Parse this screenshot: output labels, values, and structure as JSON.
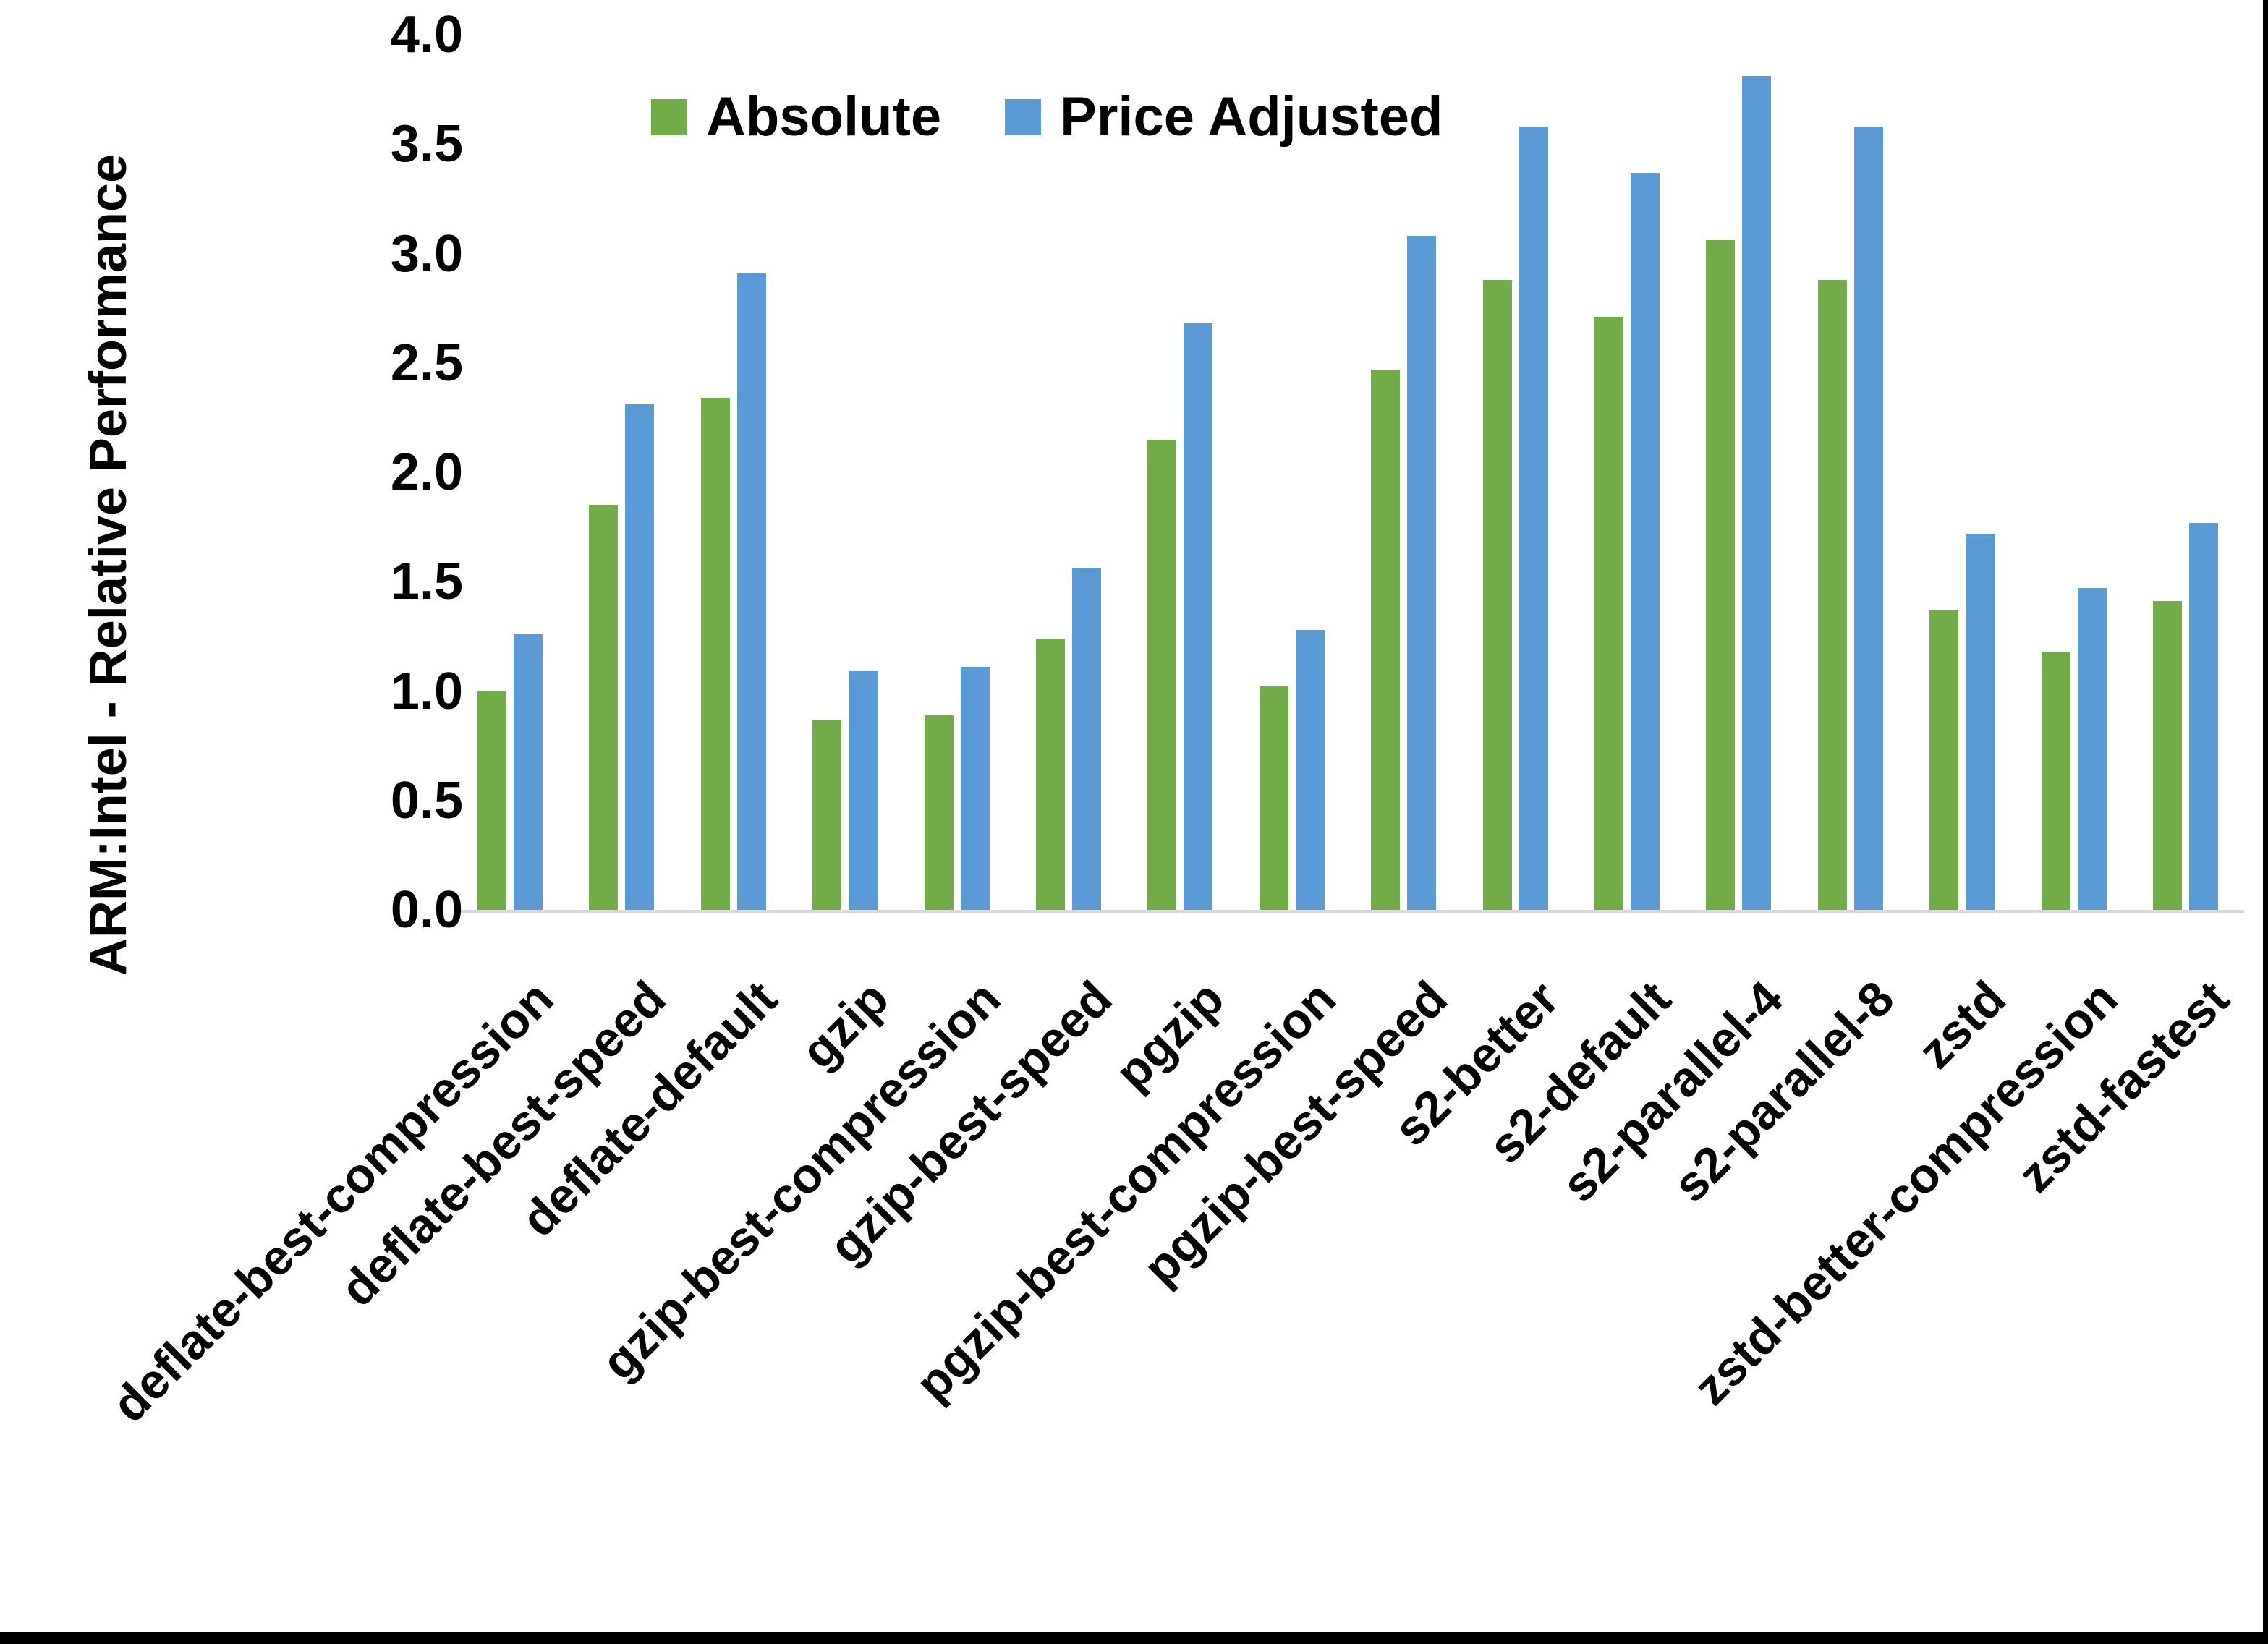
{
  "figure": {
    "background": "#ffffff",
    "edge_border_color": "#000000"
  },
  "chart_data": {
    "type": "bar",
    "title": "",
    "ylabel": "ARM:Intel - Relative Performance",
    "xlabel": "",
    "ylim": [
      0.0,
      4.0
    ],
    "ytick_step": 0.5,
    "ytick_labels": [
      "4.0",
      "3.5",
      "3.0",
      "2.5",
      "2.0",
      "1.5",
      "1.0",
      "0.5",
      "0.0"
    ],
    "grid": "off",
    "legend_position": "top-center",
    "axis_line_color": "#d9d9d9",
    "categories": [
      "deflate-best-compression",
      "deflate-best-speed",
      "deflate-default",
      "gzip",
      "gzip-best-compression",
      "gzip-best-speed",
      "pgzip",
      "pgzip-best-compression",
      "pgzip-best-speed",
      "s2-better",
      "s2-default",
      "s2-parallel-4",
      "s2-parallel-8",
      "zstd",
      "zstd-better-compression",
      "zstd-fastest"
    ],
    "series": [
      {
        "name": "Absolute",
        "color": "#70AD47",
        "values": [
          1.0,
          1.85,
          2.34,
          0.87,
          0.89,
          1.24,
          2.15,
          1.02,
          2.47,
          2.88,
          2.71,
          3.06,
          2.88,
          1.37,
          1.18,
          1.41
        ]
      },
      {
        "name": "Price Adjusted",
        "color": "#5B9BD5",
        "values": [
          1.26,
          2.31,
          2.91,
          1.09,
          1.11,
          1.56,
          2.68,
          1.28,
          3.08,
          3.58,
          3.37,
          3.81,
          3.58,
          1.72,
          1.47,
          1.77
        ]
      }
    ]
  },
  "legend": {
    "items": [
      {
        "label": "Absolute",
        "color": "#70AD47"
      },
      {
        "label": "Price Adjusted",
        "color": "#5B9BD5"
      }
    ]
  }
}
